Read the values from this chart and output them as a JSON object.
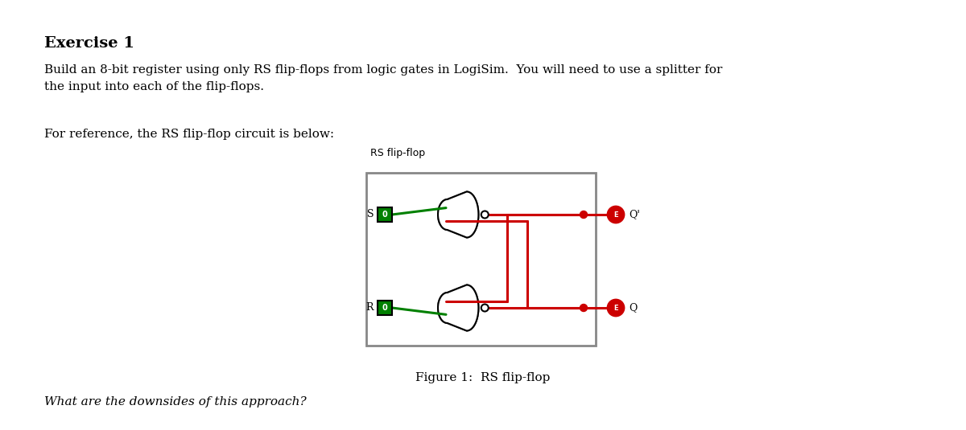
{
  "title": "Exercise 1",
  "paragraph1": "Build an 8-bit register using only RS flip-flops from logic gates in LogiSim.  You will need to use a splitter for\nthe input into each of the flip-flops.",
  "paragraph2": "For reference, the RS flip-flop circuit is below:",
  "figure_label": "Figure 1:  RS flip-flop",
  "circuit_title": "RS flip-flop",
  "question": "What are the downsides of this approach?",
  "bg_color": "#ffffff",
  "text_color": "#000000",
  "green_color": "#008000",
  "red_color": "#cc0000",
  "gray_color": "#888888",
  "gate_color": "#000000",
  "box_border_color": "#888888",
  "input_border_color": "#000000",
  "input_bg_color": "#008000",
  "output_border_color": "#cc0000",
  "output_bg_color": "#cc0000",
  "output_inner_color": "#ffffff"
}
